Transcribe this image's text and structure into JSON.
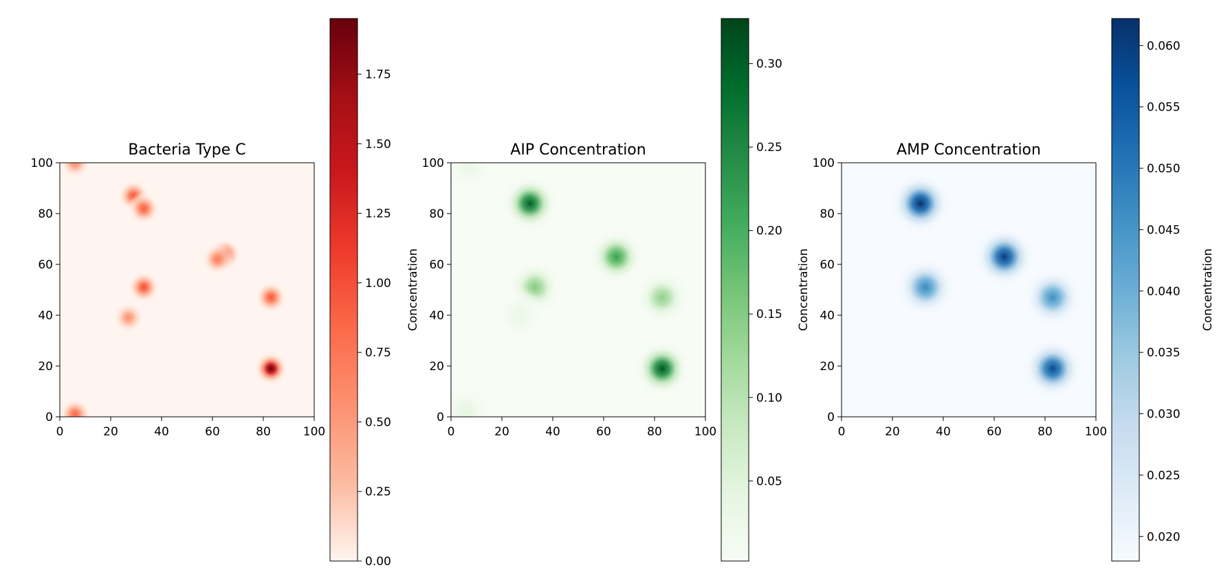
{
  "chart_data": [
    {
      "type": "heatmap",
      "title": "Bacteria Type C",
      "colormap": "Reds",
      "colors": [
        "#fff5f0",
        "#fcbba1",
        "#fc9272",
        "#fb6a4a",
        "#ef3b2c",
        "#cb181d",
        "#a50f15",
        "#67000d"
      ],
      "xlim": [
        0,
        100
      ],
      "ylim": [
        0,
        100
      ],
      "xticks": [
        "0",
        "20",
        "40",
        "60",
        "80",
        "100"
      ],
      "yticks": [
        "0",
        "20",
        "40",
        "60",
        "80",
        "100"
      ],
      "colorbar": {
        "range": [
          0,
          1.95
        ],
        "ticks": [
          "0.00",
          "0.25",
          "0.50",
          "0.75",
          "1.00",
          "1.25",
          "1.50",
          "1.75"
        ],
        "label": ""
      },
      "hotspots": [
        {
          "x": 6,
          "y": 100,
          "value": 0.6
        },
        {
          "x": 29,
          "y": 87,
          "value": 0.95
        },
        {
          "x": 33,
          "y": 82,
          "value": 0.9
        },
        {
          "x": 65,
          "y": 64,
          "value": 0.95
        },
        {
          "x": 62,
          "y": 62,
          "value": 0.7
        },
        {
          "x": 33,
          "y": 51,
          "value": 1.0
        },
        {
          "x": 83,
          "y": 47,
          "value": 0.95
        },
        {
          "x": 27,
          "y": 39,
          "value": 0.55
        },
        {
          "x": 83,
          "y": 19,
          "value": 1.95
        },
        {
          "x": 6,
          "y": 1,
          "value": 0.85
        }
      ]
    },
    {
      "type": "heatmap",
      "title": "AIP Concentration",
      "colormap": "Greens",
      "colors": [
        "#f7fcf5",
        "#e5f5e0",
        "#c7e9c0",
        "#a1d99b",
        "#74c476",
        "#41ab5d",
        "#238b45",
        "#006d2c",
        "#00441b"
      ],
      "xlim": [
        0,
        100
      ],
      "ylim": [
        0,
        100
      ],
      "xticks": [
        "0",
        "20",
        "40",
        "60",
        "80",
        "100"
      ],
      "yticks": [
        "0",
        "20",
        "40",
        "60",
        "80",
        "100"
      ],
      "colorbar": {
        "range": [
          0.002,
          0.327
        ],
        "ticks": [
          "0.05",
          "0.10",
          "0.15",
          "0.20",
          "0.25",
          "0.30"
        ],
        "label": "Concentration"
      },
      "hotspots": [
        {
          "x": 31,
          "y": 84,
          "value": 0.3
        },
        {
          "x": 65,
          "y": 63,
          "value": 0.22
        },
        {
          "x": 33,
          "y": 51,
          "value": 0.15
        },
        {
          "x": 83,
          "y": 47,
          "value": 0.14
        },
        {
          "x": 83,
          "y": 19,
          "value": 0.31
        },
        {
          "x": 7,
          "y": 99,
          "value": 0.03
        },
        {
          "x": 6,
          "y": 2,
          "value": 0.04
        },
        {
          "x": 27,
          "y": 40,
          "value": 0.03
        }
      ]
    },
    {
      "type": "heatmap",
      "title": "AMP Concentration",
      "colormap": "Blues",
      "colors": [
        "#f7fbff",
        "#deebf7",
        "#c6dbef",
        "#9ecae1",
        "#6baed6",
        "#4292c6",
        "#2171b5",
        "#08519c",
        "#08306b"
      ],
      "xlim": [
        0,
        100
      ],
      "ylim": [
        0,
        100
      ],
      "xticks": [
        "0",
        "20",
        "40",
        "60",
        "80",
        "100"
      ],
      "yticks": [
        "0",
        "20",
        "40",
        "60",
        "80",
        "100"
      ],
      "colorbar": {
        "range": [
          0.018,
          0.0622
        ],
        "ticks": [
          "0.020",
          "0.025",
          "0.030",
          "0.035",
          "0.040",
          "0.045",
          "0.050",
          "0.055",
          "0.060"
        ],
        "label": "Concentration"
      },
      "hotspots": [
        {
          "x": 31,
          "y": 84,
          "value": 0.062
        },
        {
          "x": 64,
          "y": 63,
          "value": 0.06
        },
        {
          "x": 83,
          "y": 19,
          "value": 0.058
        },
        {
          "x": 33,
          "y": 51,
          "value": 0.047
        },
        {
          "x": 83,
          "y": 47,
          "value": 0.046
        }
      ]
    }
  ]
}
